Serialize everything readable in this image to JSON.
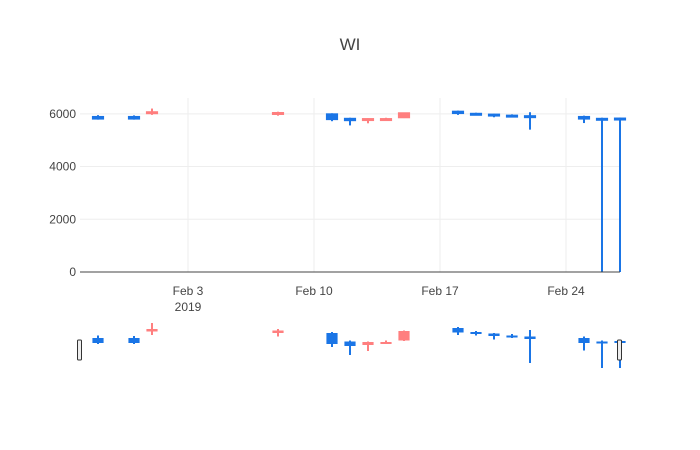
{
  "chart_data": {
    "type": "candlestick",
    "title": "WI",
    "xlabel": "",
    "ylabel": "",
    "ylim": [
      0,
      6600
    ],
    "yticks": [
      {
        "value": 0,
        "label": "0"
      },
      {
        "value": 2000,
        "label": "2000"
      },
      {
        "value": 4000,
        "label": "4000"
      },
      {
        "value": 6000,
        "label": "6000"
      }
    ],
    "xticks": [
      {
        "date": "2019-02-03",
        "label": "Feb 3",
        "sublabel": "2019"
      },
      {
        "date": "2019-02-10",
        "label": "Feb 10",
        "sublabel": ""
      },
      {
        "date": "2019-02-17",
        "label": "Feb 17",
        "sublabel": ""
      },
      {
        "date": "2019-02-24",
        "label": "Feb 24",
        "sublabel": ""
      }
    ],
    "xrange": [
      "2019-01-28",
      "2019-02-27"
    ],
    "grid": true,
    "rangeslider": true,
    "colors": {
      "increasing": "#ff7f7f",
      "decreasing": "#1a75e6",
      "grid": "#eeeeee",
      "axis": "#444444"
    },
    "candles": [
      {
        "date": "2019-01-29",
        "open": 5900,
        "high": 5950,
        "low": 5780,
        "close": 5800
      },
      {
        "date": "2019-01-31",
        "open": 5900,
        "high": 5940,
        "low": 5780,
        "close": 5800
      },
      {
        "date": "2019-02-01",
        "open": 6030,
        "high": 6200,
        "low": 5960,
        "close": 6080
      },
      {
        "date": "2019-02-08",
        "open": 6000,
        "high": 6080,
        "low": 5930,
        "close": 6050
      },
      {
        "date": "2019-02-11",
        "open": 6000,
        "high": 6020,
        "low": 5720,
        "close": 5780
      },
      {
        "date": "2019-02-12",
        "open": 5830,
        "high": 5850,
        "low": 5560,
        "close": 5740
      },
      {
        "date": "2019-02-13",
        "open": 5760,
        "high": 5830,
        "low": 5640,
        "close": 5820
      },
      {
        "date": "2019-02-14",
        "open": 5790,
        "high": 5850,
        "low": 5780,
        "close": 5820
      },
      {
        "date": "2019-02-15",
        "open": 5850,
        "high": 6050,
        "low": 5840,
        "close": 6040
      },
      {
        "date": "2019-02-18",
        "open": 6100,
        "high": 6120,
        "low": 5960,
        "close": 6010
      },
      {
        "date": "2019-02-19",
        "open": 6020,
        "high": 6040,
        "low": 5950,
        "close": 5990
      },
      {
        "date": "2019-02-20",
        "open": 5990,
        "high": 6000,
        "low": 5870,
        "close": 5940
      },
      {
        "date": "2019-02-21",
        "open": 5950,
        "high": 5980,
        "low": 5900,
        "close": 5920
      },
      {
        "date": "2019-02-22",
        "open": 5930,
        "high": 6060,
        "low": 5400,
        "close": 5880
      },
      {
        "date": "2019-02-25",
        "open": 5900,
        "high": 5930,
        "low": 5650,
        "close": 5800
      },
      {
        "date": "2019-02-26",
        "open": 5830,
        "high": 5850,
        "low": 0,
        "close": 5820
      },
      {
        "date": "2019-02-27",
        "open": 5840,
        "high": 5860,
        "low": 0,
        "close": 5830
      }
    ]
  }
}
